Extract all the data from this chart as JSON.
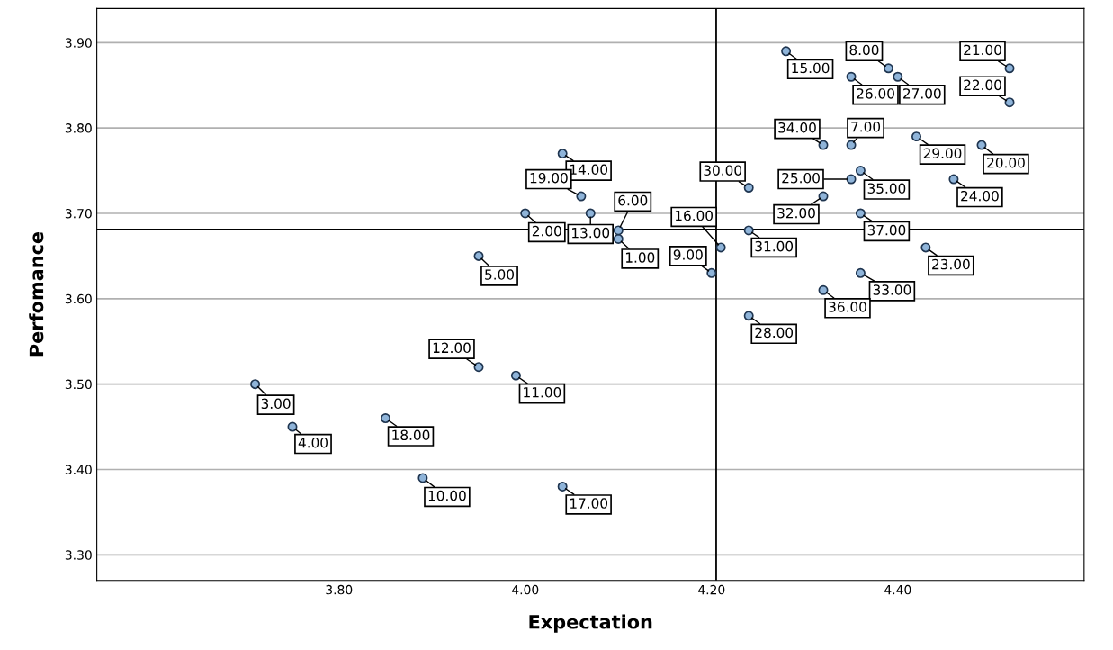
{
  "chart_data": {
    "type": "scatter",
    "xlabel": "Expectation",
    "ylabel": "Perfomance",
    "x": [
      4.1,
      4.0,
      3.71,
      3.75,
      3.95,
      4.1,
      4.35,
      4.39,
      4.2,
      3.89,
      3.99,
      3.95,
      4.07,
      4.04,
      4.28,
      4.21,
      4.04,
      3.85,
      4.06,
      4.49,
      4.52,
      4.52,
      4.43,
      4.46,
      4.35,
      4.35,
      4.4,
      4.24,
      4.42,
      4.24,
      4.24,
      4.32,
      4.36,
      4.32,
      4.36,
      4.32,
      4.36
    ],
    "series": [
      {
        "color": "#8fb4d9",
        "values": [
          3.67,
          3.7,
          3.5,
          3.45,
          3.65,
          3.68,
          3.78,
          3.87,
          3.63,
          3.39,
          3.51,
          3.52,
          3.7,
          3.77,
          3.89,
          3.66,
          3.38,
          3.46,
          3.72,
          3.78,
          3.87,
          3.83,
          3.66,
          3.74,
          3.74,
          3.86,
          3.86,
          3.58,
          3.79,
          3.73,
          3.68,
          3.72,
          3.63,
          3.78,
          3.75,
          3.61,
          3.7
        ]
      }
    ],
    "annotations": [
      {
        "text": "1.00",
        "x": 4.1,
        "y": 3.67
      },
      {
        "text": "2.00",
        "x": 4.0,
        "y": 3.7
      },
      {
        "text": "3.00",
        "x": 3.71,
        "y": 3.5
      },
      {
        "text": "4.00",
        "x": 3.75,
        "y": 3.45
      },
      {
        "text": "5.00",
        "x": 3.95,
        "y": 3.65
      },
      {
        "text": "6.00",
        "x": 4.1,
        "y": 3.68
      },
      {
        "text": "7.00",
        "x": 4.35,
        "y": 3.78
      },
      {
        "text": "8.00",
        "x": 4.39,
        "y": 3.87
      },
      {
        "text": "9.00",
        "x": 4.2,
        "y": 3.63
      },
      {
        "text": "10.00",
        "x": 3.89,
        "y": 3.39
      },
      {
        "text": "11.00",
        "x": 3.99,
        "y": 3.51
      },
      {
        "text": "12.00",
        "x": 3.95,
        "y": 3.52
      },
      {
        "text": "13.00",
        "x": 4.07,
        "y": 3.7
      },
      {
        "text": "14.00",
        "x": 4.04,
        "y": 3.77
      },
      {
        "text": "15.00",
        "x": 4.28,
        "y": 3.89
      },
      {
        "text": "16.00",
        "x": 4.21,
        "y": 3.66
      },
      {
        "text": "17.00",
        "x": 4.04,
        "y": 3.38
      },
      {
        "text": "18.00",
        "x": 3.85,
        "y": 3.46
      },
      {
        "text": "19.00",
        "x": 4.06,
        "y": 3.72
      },
      {
        "text": "20.00",
        "x": 4.49,
        "y": 3.78
      },
      {
        "text": "21.00",
        "x": 4.52,
        "y": 3.87
      },
      {
        "text": "22.00",
        "x": 4.52,
        "y": 3.83
      },
      {
        "text": "23.00",
        "x": 4.43,
        "y": 3.66
      },
      {
        "text": "24.00",
        "x": 4.46,
        "y": 3.74
      },
      {
        "text": "25.00",
        "x": 4.35,
        "y": 3.74
      },
      {
        "text": "26.00",
        "x": 4.35,
        "y": 3.86
      },
      {
        "text": "27.00",
        "x": 4.4,
        "y": 3.86
      },
      {
        "text": "28.00",
        "x": 4.24,
        "y": 3.58
      },
      {
        "text": "29.00",
        "x": 4.42,
        "y": 3.79
      },
      {
        "text": "30.00",
        "x": 4.24,
        "y": 3.73
      },
      {
        "text": "31.00",
        "x": 4.24,
        "y": 3.68
      },
      {
        "text": "32.00",
        "x": 4.32,
        "y": 3.72
      },
      {
        "text": "33.00",
        "x": 4.36,
        "y": 3.63
      },
      {
        "text": "34.00",
        "x": 4.32,
        "y": 3.78
      },
      {
        "text": "35.00",
        "x": 4.36,
        "y": 3.75
      },
      {
        "text": "36.00",
        "x": 4.32,
        "y": 3.61
      },
      {
        "text": "37.00",
        "x": 4.36,
        "y": 3.7
      }
    ],
    "ref_lines": [
      {
        "axis": "x",
        "value": 4.205,
        "color": "#000000"
      },
      {
        "axis": "y",
        "value": 3.681,
        "color": "#000000"
      }
    ],
    "xlim": [
      3.54,
      4.6
    ],
    "ylim": [
      3.27,
      3.94
    ],
    "xticks": [
      {
        "value": 3.8,
        "label": "3.80"
      },
      {
        "value": 4.0,
        "label": "4.00"
      },
      {
        "value": 4.2,
        "label": "4.20"
      },
      {
        "value": 4.4,
        "label": "4.40"
      }
    ],
    "yticks": [
      {
        "value": 3.3,
        "label": "3.30"
      },
      {
        "value": 3.4,
        "label": "3.40"
      },
      {
        "value": 3.5,
        "label": "3.50"
      },
      {
        "value": 3.6,
        "label": "3.60"
      },
      {
        "value": 3.7,
        "label": "3.70"
      },
      {
        "value": 3.8,
        "label": "3.80"
      },
      {
        "value": 3.9,
        "label": "3.90"
      }
    ],
    "grid": "y",
    "marker": "circle"
  }
}
